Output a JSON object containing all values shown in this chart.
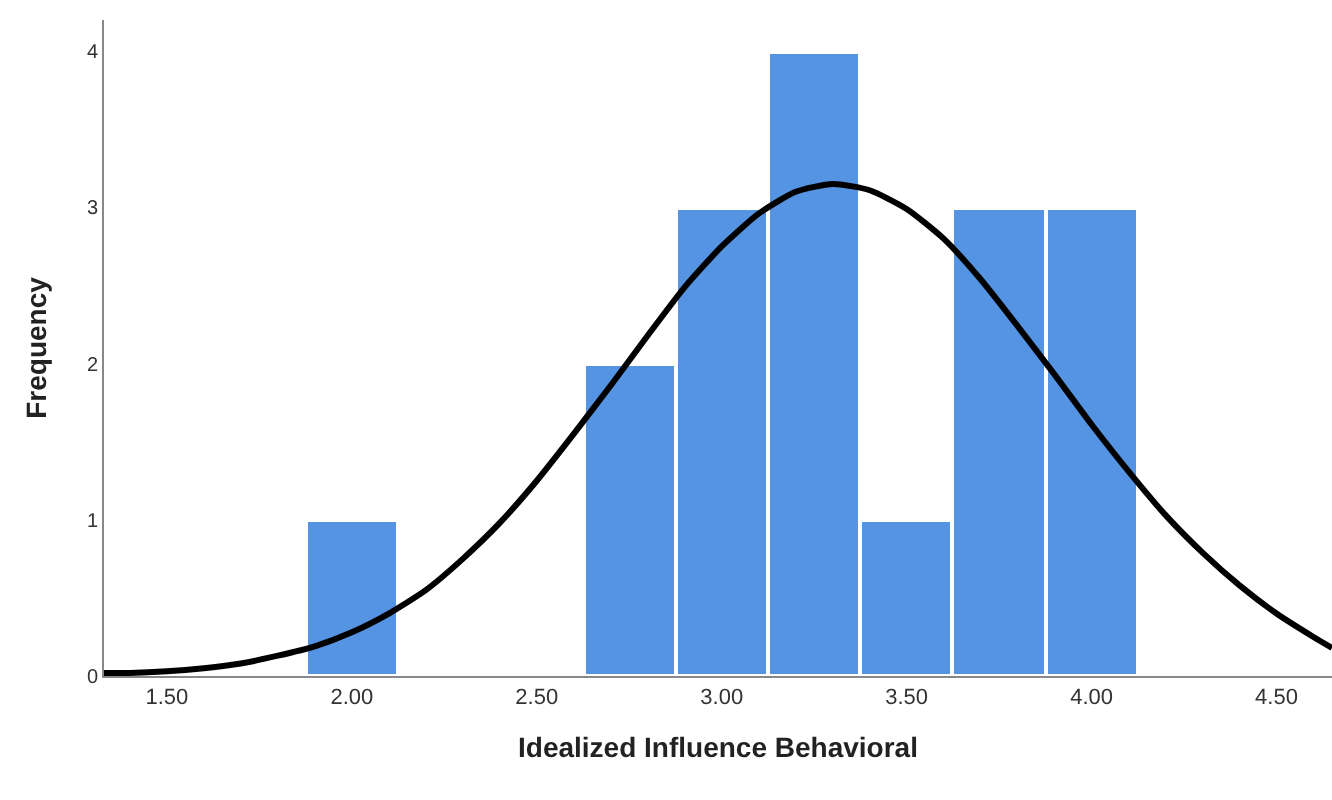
{
  "chart_data": {
    "type": "histogram",
    "xlabel": "Idealized Influence Behavioral",
    "ylabel": "Frequency",
    "bins": [
      1.875,
      2.125,
      2.375,
      2.625,
      2.875,
      3.125,
      3.375,
      3.625,
      3.875,
      4.125
    ],
    "values": [
      1,
      0,
      0,
      2,
      3,
      4,
      1,
      3,
      3
    ],
    "color": "#5594e3",
    "series": [
      {
        "type": "line",
        "color": "#000000",
        "line_style": "solid",
        "marker": "none",
        "x": [
          1.33,
          1.4,
          1.5,
          1.6,
          1.7,
          1.8,
          1.9,
          2.0,
          2.1,
          2.2,
          2.3,
          2.4,
          2.5,
          2.6,
          2.7,
          2.8,
          2.9,
          3.0,
          3.1,
          3.2,
          3.3,
          3.4,
          3.5,
          3.6,
          3.7,
          3.8,
          3.9,
          4.0,
          4.1,
          4.2,
          4.3,
          4.4,
          4.5,
          4.6,
          4.65
        ],
        "values": [
          0.02,
          0.02,
          0.03,
          0.05,
          0.08,
          0.13,
          0.19,
          0.28,
          0.4,
          0.55,
          0.75,
          0.98,
          1.25,
          1.55,
          1.86,
          2.18,
          2.49,
          2.75,
          2.96,
          3.1,
          3.15,
          3.11,
          2.99,
          2.8,
          2.54,
          2.24,
          1.93,
          1.61,
          1.31,
          1.03,
          0.79,
          0.58,
          0.4,
          0.25,
          0.18
        ]
      }
    ],
    "xlim": [
      1.33,
      4.65
    ],
    "ylim": [
      0,
      4.2
    ],
    "xticks": [
      {
        "value": 1.5,
        "label": "1.50"
      },
      {
        "value": 2,
        "label": "2.00"
      },
      {
        "value": 2.5,
        "label": "2.50"
      },
      {
        "value": 3,
        "label": "3.00"
      },
      {
        "value": 3.5,
        "label": "3.50"
      },
      {
        "value": 4,
        "label": "4.00"
      },
      {
        "value": 4.5,
        "label": "4.50"
      }
    ],
    "yticks": [
      0,
      1,
      2,
      3,
      4
    ],
    "grid": false
  }
}
